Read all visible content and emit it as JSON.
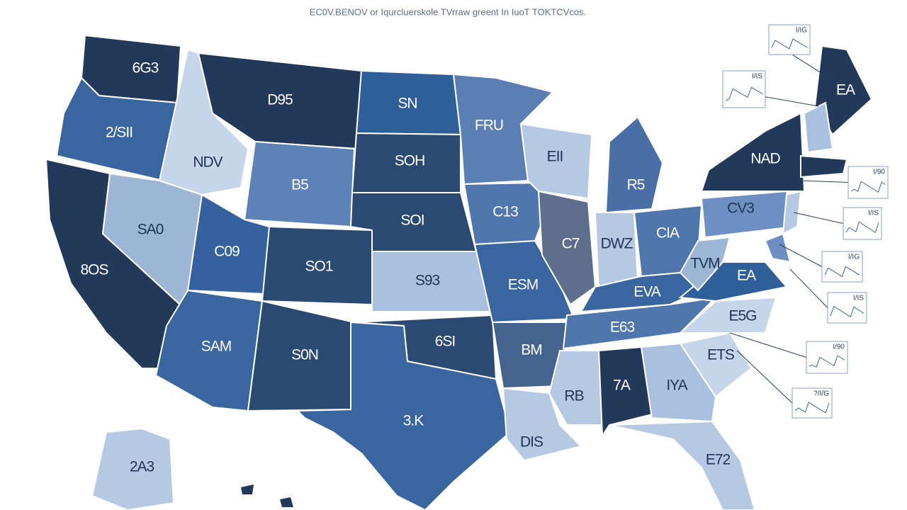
{
  "title": "EC0V.BENOV or Iqurcluerskole TVrraw greent In IuoT TOKTCVcos.",
  "regions": [
    {
      "label": "6G3",
      "color": "#22395a"
    },
    {
      "label": "2/SII",
      "color": "#3a66a0"
    },
    {
      "label": "8OS",
      "color": "#22395a"
    },
    {
      "label": "SA0",
      "color": "#9db6d6"
    },
    {
      "label": "NDV",
      "color": "#c5d6ea"
    },
    {
      "label": "D95",
      "color": "#22395a"
    },
    {
      "label": "B5",
      "color": "#5c82b8"
    },
    {
      "label": "C09",
      "color": "#35629e"
    },
    {
      "label": "SO1",
      "color": "#2b4a72"
    },
    {
      "label": "SAM",
      "color": "#3a66a0"
    },
    {
      "label": "S0N",
      "color": "#2b4a72"
    },
    {
      "label": "SN",
      "color": "#2f5f98"
    },
    {
      "label": "SOH",
      "color": "#2b4a72"
    },
    {
      "label": "SOI",
      "color": "#2b4a72"
    },
    {
      "label": "S93",
      "color": "#a9c1df"
    },
    {
      "label": "6SI",
      "color": "#2b4a72"
    },
    {
      "label": "3.K",
      "color": "#3a66a0"
    },
    {
      "label": "FRU",
      "color": "#5b7fb5"
    },
    {
      "label": "C13",
      "color": "#4f77ad"
    },
    {
      "label": "ESM",
      "color": "#3a66a0"
    },
    {
      "label": "BM",
      "color": "#44648f"
    },
    {
      "label": "DIS",
      "color": "#b6c9e3"
    },
    {
      "label": "EII",
      "color": "#b6c9e3"
    },
    {
      "label": "C7",
      "color": "#5d6f8b"
    },
    {
      "label": "R5",
      "color": "#4a6fa6"
    },
    {
      "label": "DWZ",
      "color": "#b6c9e3"
    },
    {
      "label": "CIA",
      "color": "#4f77ad"
    },
    {
      "label": "EVA",
      "color": "#3a66a0"
    },
    {
      "label": "E63",
      "color": "#4f77ad"
    },
    {
      "label": "RB",
      "color": "#b6c9e3"
    },
    {
      "label": "7A",
      "color": "#22395a"
    },
    {
      "label": "IYA",
      "color": "#a9c1df"
    },
    {
      "label": "E72",
      "color": "#b6c9e3"
    },
    {
      "label": "ETS",
      "color": "#c5d6ea"
    },
    {
      "label": "E5G",
      "color": "#c5d6ea"
    },
    {
      "label": "EA",
      "color": "#2f5f98"
    },
    {
      "label": "TVM",
      "color": "#9db6d6"
    },
    {
      "label": "CV3",
      "color": "#6d8fc2"
    },
    {
      "label": "NAD",
      "color": "#22395a"
    },
    {
      "label": "EA",
      "color": "#22395a"
    },
    {
      "label": "2A3",
      "color": "#b6c9e3"
    }
  ],
  "insets": [
    {
      "label": "I/IG"
    },
    {
      "label": "I/IS"
    },
    {
      "label": "I/90"
    },
    {
      "label": "I/IS"
    },
    {
      "label": "I/IG"
    },
    {
      "label": "I/IS"
    },
    {
      "label": "I/90"
    },
    {
      "label": "?/I/G"
    }
  ]
}
